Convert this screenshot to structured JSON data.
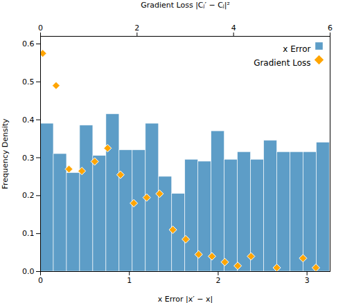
{
  "chart_data": {
    "type": "histogram",
    "xlabel": "x Error |x′ − x|",
    "ylabel": "Frequency Density",
    "x2label": "Gradient Loss |Cⱼ′ − Cⱼ|²",
    "series": [
      {
        "name": "x Error",
        "type": "histogram",
        "color": "#5d9dc7",
        "bins": [
          0,
          0.148,
          0.296,
          0.444,
          0.592,
          0.74,
          0.888,
          1.036,
          1.184,
          1.332,
          1.48,
          1.628,
          1.776,
          1.924,
          2.072,
          2.22,
          2.368,
          2.516,
          2.664,
          2.812,
          2.96,
          3.108,
          3.256
        ],
        "values": [
          0.39,
          0.31,
          0.26,
          0.385,
          0.305,
          0.415,
          0.32,
          0.32,
          0.39,
          0.25,
          0.205,
          0.295,
          0.29,
          0.37,
          0.295,
          0.315,
          0.295,
          0.345,
          0.315,
          0.315,
          0.315,
          0.34
        ]
      },
      {
        "name": "Gradient Loss",
        "type": "scatter",
        "color": "#ffa500",
        "marker": "diamond",
        "x": [
          0.025,
          0.175,
          0.32,
          0.465,
          0.61,
          0.755,
          0.9,
          1.05,
          1.195,
          1.34,
          1.49,
          1.635,
          1.78,
          1.93,
          2.075,
          2.22,
          2.37,
          2.66,
          2.955,
          3.1
        ],
        "values": [
          0.575,
          0.49,
          0.27,
          0.265,
          0.29,
          0.325,
          0.255,
          0.18,
          0.195,
          0.205,
          0.11,
          0.085,
          0.045,
          0.04,
          0.025,
          0.015,
          0.04,
          0.01,
          0.035,
          0.01
        ]
      }
    ],
    "xlim": [
      0,
      3.26
    ],
    "xticks": [
      0,
      1,
      2,
      3
    ],
    "ylim": [
      0,
      0.62
    ],
    "yticks": [
      {
        "value": 0,
        "label": "0.0"
      },
      0.1,
      0.2,
      0.3,
      0.4,
      0.5,
      0.6
    ],
    "x2lim": [
      0,
      6
    ],
    "x2ticks": [
      0,
      2,
      4,
      6
    ],
    "legend": "upper right",
    "grid": false
  }
}
